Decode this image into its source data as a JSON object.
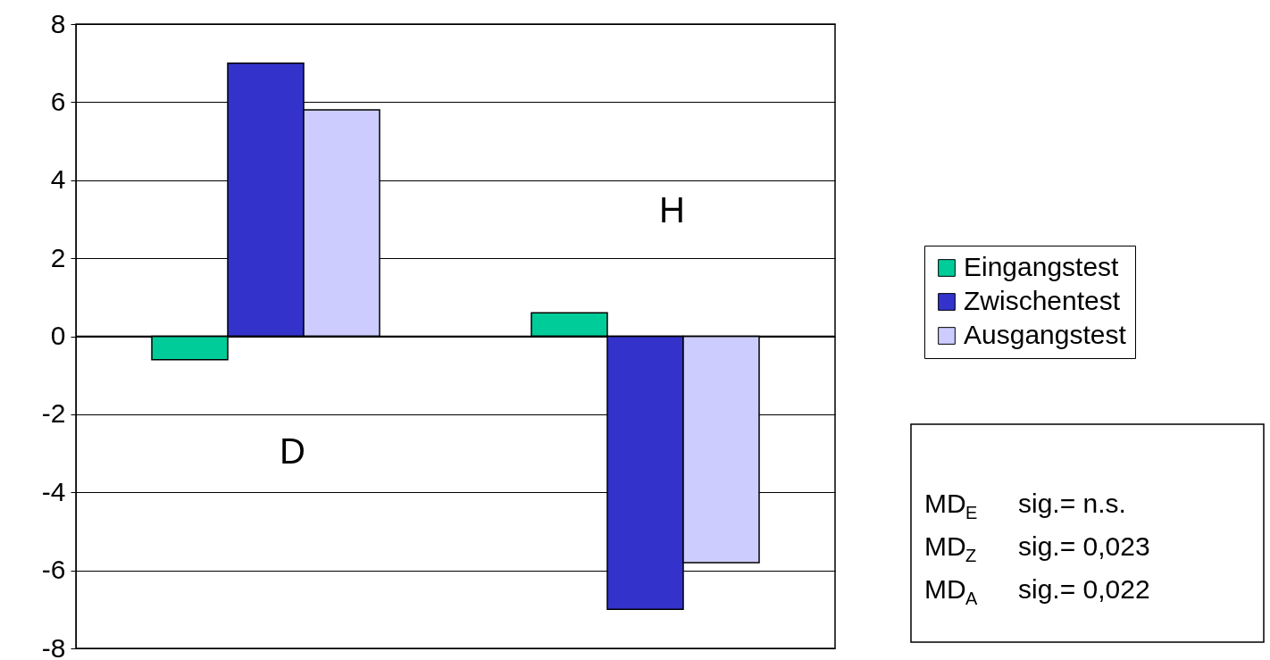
{
  "chart_data": {
    "type": "bar",
    "categories": [
      null,
      null
    ],
    "series": [
      {
        "name": "Eingangstest",
        "color": "#00cc99",
        "values": [
          -0.6,
          0.6
        ]
      },
      {
        "name": "Zwischentest",
        "color": "#3333cc",
        "values": [
          7.0,
          -7.0
        ]
      },
      {
        "name": "Ausgangstest",
        "color": "#ccccff",
        "values": [
          5.8,
          -5.8
        ]
      }
    ],
    "ylim": [
      -8,
      8
    ],
    "yticks": [
      -8,
      -6,
      -4,
      -2,
      0,
      2,
      4,
      6,
      8
    ],
    "grid": "y",
    "legend": "right",
    "annotations": [
      "D",
      "H",
      "MD$_{E}$  sig.= n.s.",
      "MD$_{Z}$  sig.= 0,023",
      "MD$_{A}$  sig.= 0,022"
    ]
  }
}
